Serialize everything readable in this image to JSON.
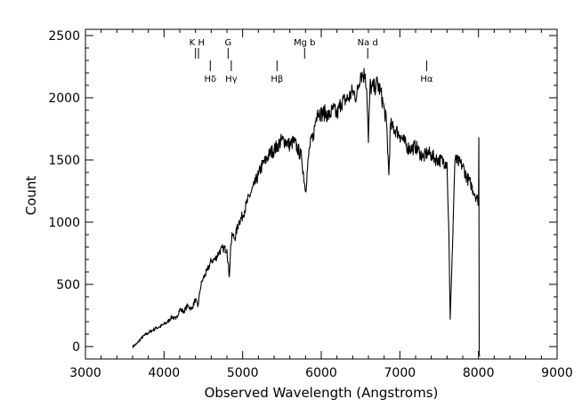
{
  "chart_data": {
    "type": "line",
    "title": "",
    "xlabel": "Observed Wavelength (Angstroms)",
    "ylabel": "Count",
    "xlim": [
      3000,
      9000
    ],
    "ylim": [
      -100,
      2550
    ],
    "x_ticks": [
      3000,
      4000,
      5000,
      6000,
      7000,
      8000,
      9000
    ],
    "y_ticks": [
      0,
      500,
      1000,
      1500,
      2000,
      2500
    ],
    "grid": false,
    "legend": "none",
    "line_color": "#000000",
    "series": [
      {
        "x": [
          3600,
          3650,
          3700,
          3750,
          3800,
          3850,
          3900,
          3950,
          4000,
          4050,
          4100,
          4150,
          4200,
          4250,
          4300,
          4350,
          4400,
          4430,
          4460,
          4480,
          4500,
          4550,
          4600,
          4650,
          4700,
          4750,
          4800,
          4830,
          4850,
          4870,
          4900,
          4950,
          5000,
          5050,
          5100,
          5150,
          5200,
          5250,
          5300,
          5350,
          5400,
          5450,
          5500,
          5550,
          5600,
          5650,
          5700,
          5750,
          5800,
          5850,
          5900,
          5950,
          6000,
          6050,
          6100,
          6150,
          6200,
          6250,
          6300,
          6350,
          6400,
          6450,
          6500,
          6530,
          6560,
          6580,
          6600,
          6620,
          6640,
          6680,
          6700,
          6750,
          6800,
          6830,
          6860,
          6880,
          6900,
          6950,
          7000,
          7050,
          7100,
          7150,
          7200,
          7250,
          7300,
          7350,
          7400,
          7450,
          7500,
          7550,
          7580,
          7600,
          7610,
          7625,
          7640,
          7660,
          7700,
          7750,
          7800,
          7850,
          7900,
          7950,
          7990,
          8000,
          8005,
          8010,
          8015
        ],
        "y": [
          0,
          20,
          60,
          90,
          110,
          130,
          150,
          160,
          180,
          200,
          240,
          220,
          300,
          280,
          330,
          300,
          380,
          320,
          460,
          520,
          550,
          610,
          690,
          700,
          760,
          790,
          780,
          560,
          820,
          900,
          870,
          1000,
          1050,
          1150,
          1230,
          1300,
          1380,
          1460,
          1500,
          1560,
          1580,
          1620,
          1660,
          1650,
          1620,
          1650,
          1590,
          1520,
          1250,
          1600,
          1700,
          1900,
          1870,
          1880,
          1850,
          1910,
          1860,
          1960,
          1980,
          2000,
          2050,
          2010,
          2200,
          2180,
          2190,
          2050,
          1640,
          2100,
          2080,
          2080,
          2120,
          2060,
          1910,
          1800,
          1380,
          1790,
          1760,
          1740,
          1700,
          1650,
          1600,
          1590,
          1610,
          1560,
          1520,
          1560,
          1540,
          1510,
          1500,
          1490,
          1480,
          1480,
          1200,
          880,
          220,
          600,
          1500,
          1480,
          1450,
          1360,
          1310,
          1230,
          1180,
          1170,
          1680,
          -60,
          -80
        ]
      }
    ],
    "annotations": [
      {
        "label": "K",
        "x": 3934,
        "row": "upper"
      },
      {
        "label": "H",
        "x": 3968,
        "row": "upper"
      },
      {
        "label": "G",
        "x": 4305,
        "row": "upper"
      },
      {
        "label": "Mg b",
        "x": 5175,
        "row": "upper"
      },
      {
        "label": "Na d",
        "x": 5893,
        "row": "upper"
      },
      {
        "label": "Hδ",
        "x": 4102,
        "row": "lower"
      },
      {
        "label": "Hγ",
        "x": 4341,
        "row": "lower"
      },
      {
        "label": "Hβ",
        "x": 4861,
        "row": "lower"
      },
      {
        "label": "Hα",
        "x": 6563,
        "row": "lower"
      }
    ],
    "annotation_redshift": 0.1185
  }
}
